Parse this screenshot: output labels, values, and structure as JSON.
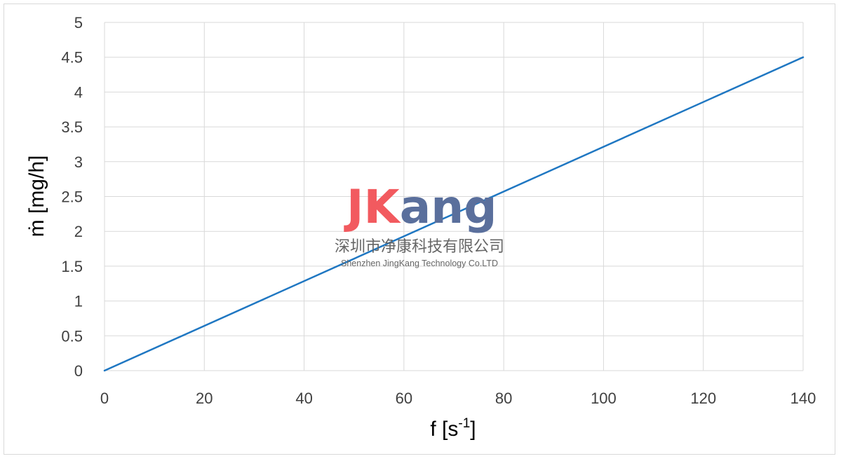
{
  "chart_data": {
    "type": "line",
    "title": "",
    "xlabel_main": "f [s",
    "xlabel_sup": "-1",
    "xlabel_end": "]",
    "ylabel": "ṁ [mg/h]",
    "xlim": [
      0,
      140
    ],
    "ylim": [
      0,
      5
    ],
    "x_ticks": [
      "0",
      "20",
      "40",
      "60",
      "80",
      "100",
      "120",
      "140"
    ],
    "y_ticks": [
      "0",
      "0.5",
      "1",
      "1.5",
      "2",
      "2.5",
      "3",
      "3.5",
      "4",
      "4.5",
      "5"
    ],
    "grid": true,
    "legend": "none",
    "series": [
      {
        "color": "#1f77c2",
        "x": [
          0,
          140
        ],
        "y": [
          0,
          4.5
        ]
      }
    ]
  },
  "watermark": {
    "logo_j": "JK",
    "logo_ang": "ang",
    "company_cn": "深圳市净康科技有限公司",
    "company_en": "Shenzhen JingKang Technology Co.LTD"
  }
}
